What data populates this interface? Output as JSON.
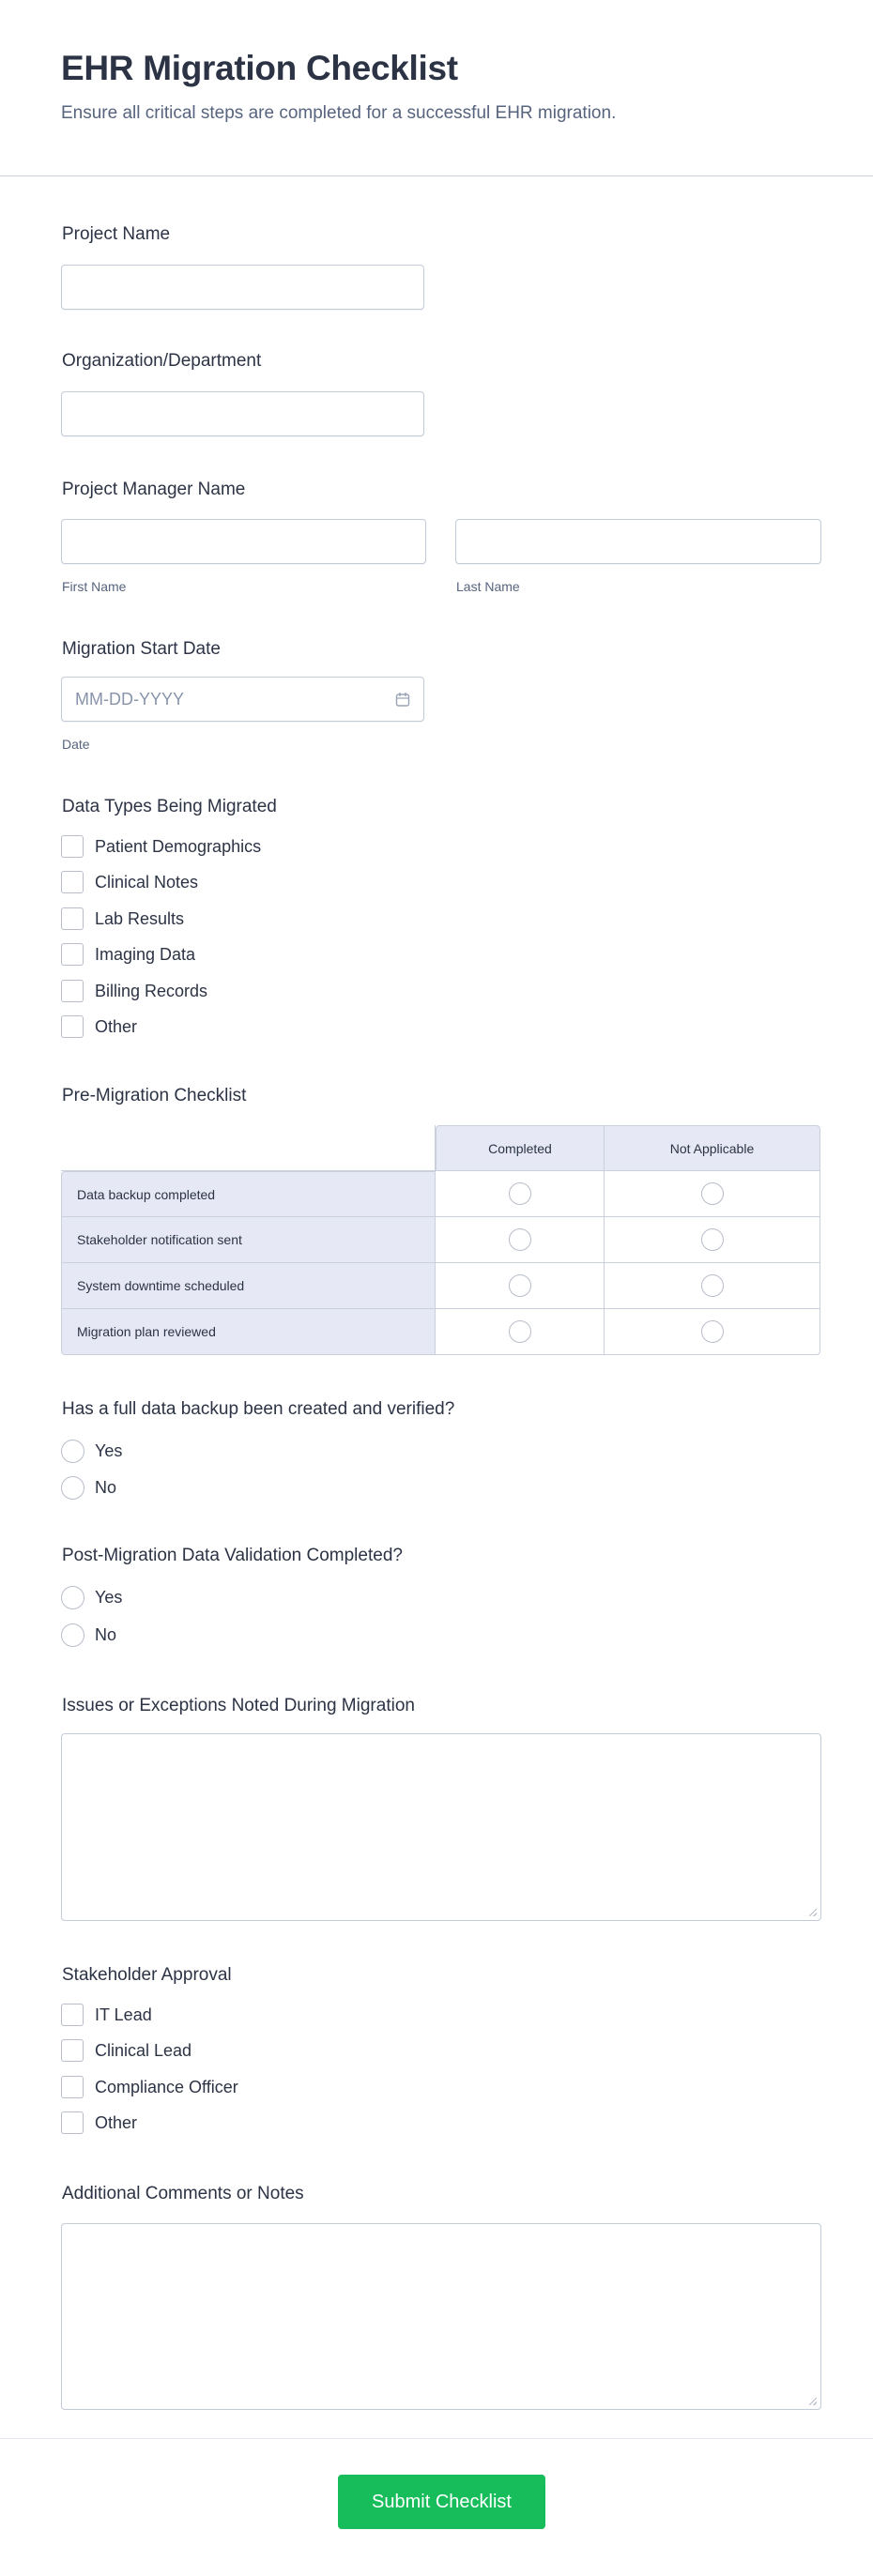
{
  "header": {
    "title": "EHR Migration Checklist",
    "subtitle": "Ensure all critical steps are completed for a successful EHR migration."
  },
  "fields": {
    "project_name": {
      "label": "Project Name",
      "value": ""
    },
    "organization": {
      "label": "Organization/Department",
      "value": ""
    },
    "project_manager": {
      "label": "Project Manager Name",
      "first_sublabel": "First Name",
      "last_sublabel": "Last Name"
    },
    "start_date": {
      "label": "Migration Start Date",
      "placeholder": "MM-DD-YYYY",
      "sublabel": "Date",
      "icon": "calendar-icon"
    }
  },
  "data_types": {
    "label": "Data Types Being Migrated",
    "options": [
      "Patient Demographics",
      "Clinical Notes",
      "Lab Results",
      "Imaging Data",
      "Billing Records",
      "Other"
    ]
  },
  "pre_migration": {
    "label": "Pre-Migration Checklist",
    "columns": [
      "Completed",
      "Not Applicable"
    ],
    "rows": [
      "Data backup completed",
      "Stakeholder notification sent",
      "System downtime scheduled",
      "Migration plan reviewed"
    ]
  },
  "backup_question": {
    "label": "Has a full data backup been created and verified?",
    "options": [
      "Yes",
      "No"
    ]
  },
  "validation_question": {
    "label": "Post-Migration Data Validation Completed?",
    "options": [
      "Yes",
      "No"
    ]
  },
  "issues": {
    "label": "Issues or Exceptions Noted During Migration",
    "value": ""
  },
  "approval": {
    "label": "Stakeholder Approval",
    "options": [
      "IT Lead",
      "Clinical Lead",
      "Compliance Officer",
      "Other"
    ]
  },
  "comments": {
    "label": "Additional Comments or Notes",
    "value": ""
  },
  "submit": {
    "label": "Submit Checklist",
    "color": "#18bd5b"
  }
}
